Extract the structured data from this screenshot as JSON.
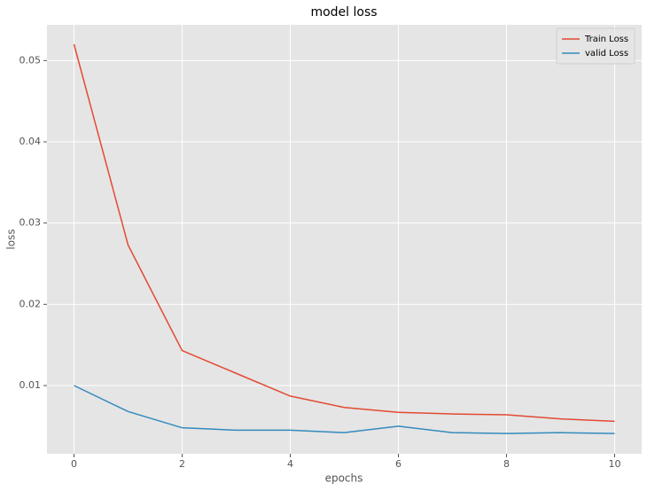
{
  "chart_data": {
    "type": "line",
    "title": "model loss",
    "x_label": "epochs",
    "y_label": "loss",
    "x": [
      0,
      1,
      2,
      3,
      4,
      5,
      6,
      7,
      8,
      9,
      10
    ],
    "series": [
      {
        "name": "Train Loss",
        "color": "#E24A33",
        "values": [
          0.052,
          0.0273,
          0.0143,
          0.0115,
          0.0087,
          0.0073,
          0.0067,
          0.0065,
          0.0064,
          0.0059,
          0.0056
        ]
      },
      {
        "name": "valid Loss",
        "color": "#348ABD",
        "values": [
          0.01,
          0.0068,
          0.0048,
          0.0045,
          0.0045,
          0.0042,
          0.005,
          0.0042,
          0.0041,
          0.0042,
          0.0041
        ]
      }
    ],
    "xlim": [
      -0.5,
      10.5
    ],
    "xticks": [
      0,
      2,
      4,
      6,
      8,
      10
    ],
    "ylim": [
      0.0016,
      0.0544
    ],
    "yticks": [
      0.01,
      0.02,
      0.03,
      0.04,
      0.05
    ],
    "grid": true,
    "legend": "upper right"
  }
}
